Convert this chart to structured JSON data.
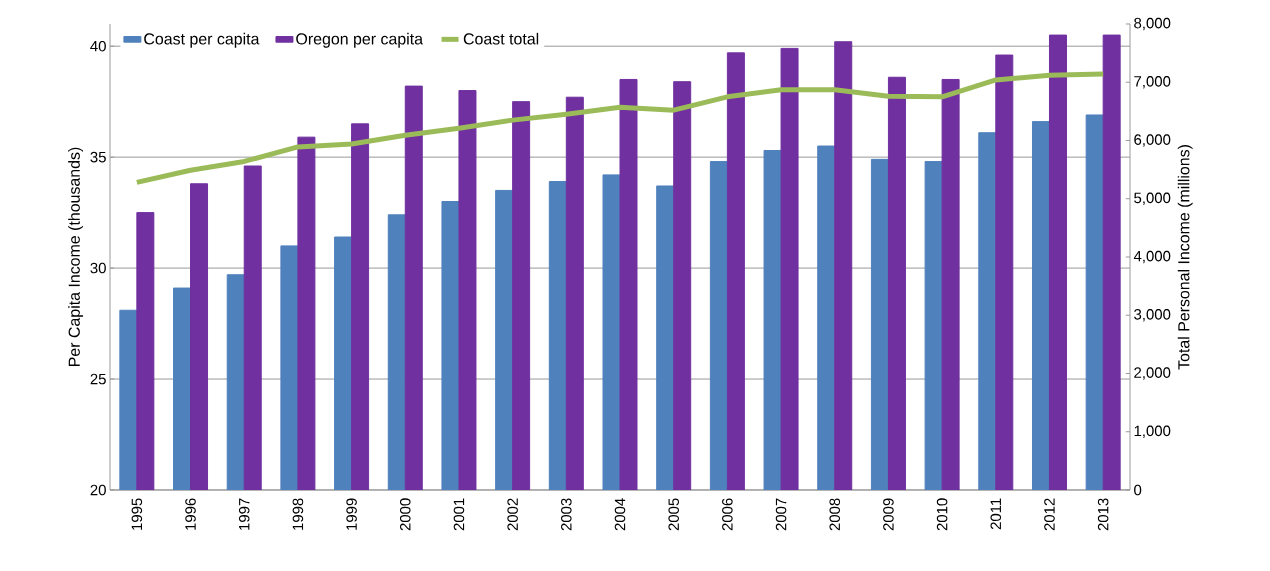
{
  "chart_data": {
    "type": "bar",
    "categories": [
      "1995",
      "1996",
      "1997",
      "1998",
      "1999",
      "2000",
      "2001",
      "2002",
      "2003",
      "2004",
      "2005",
      "2006",
      "2007",
      "2008",
      "2009",
      "2010",
      "2011",
      "2012",
      "2013"
    ],
    "series": [
      {
        "name": "Coast per capita",
        "color": "#4f81bd",
        "values": [
          28.1,
          29.1,
          29.7,
          31.0,
          31.4,
          32.4,
          33.0,
          33.5,
          33.9,
          34.2,
          33.7,
          34.8,
          35.3,
          35.5,
          34.9,
          34.8,
          36.1,
          36.6,
          36.9
        ]
      },
      {
        "name": "Oregon per capita",
        "color": "#7030a0",
        "values": [
          32.5,
          33.8,
          34.6,
          35.9,
          36.5,
          38.2,
          38.0,
          37.5,
          37.7,
          38.5,
          38.4,
          39.7,
          39.9,
          40.2,
          38.6,
          38.5,
          39.6,
          40.5,
          40.5
        ]
      },
      {
        "name": "Coast total",
        "type": "line",
        "axis": "y2",
        "color": "#9bbb59",
        "values": [
          5280,
          5490,
          5640,
          5890,
          5940,
          6090,
          6210,
          6350,
          6450,
          6570,
          6520,
          6750,
          6870,
          6870,
          6760,
          6750,
          7040,
          7120,
          7140
        ]
      }
    ],
    "ylabel": "Per Capita Income (thousands)",
    "y2label": "Total Personal Income (millions)",
    "ylim": [
      20,
      41
    ],
    "yticks": [
      20,
      25,
      30,
      35,
      40
    ],
    "y2lim": [
      0,
      8000
    ],
    "y2ticks": [
      0,
      {
        "value": 1000,
        "label": "1,000"
      },
      {
        "value": 2000,
        "label": "2,000"
      },
      {
        "value": 3000,
        "label": "3,000"
      },
      {
        "value": 4000,
        "label": "4,000"
      },
      {
        "value": 5000,
        "label": "5,000"
      },
      {
        "value": 6000,
        "label": "6,000"
      },
      {
        "value": 7000,
        "label": "7,000"
      },
      {
        "value": 8000,
        "label": "8,000"
      }
    ],
    "grid": "y",
    "legend": "top left"
  }
}
